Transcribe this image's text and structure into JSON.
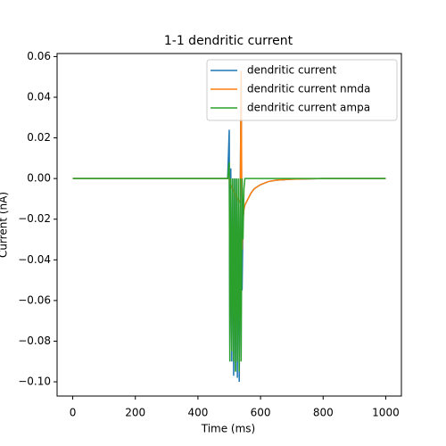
{
  "chart_data": {
    "type": "line",
    "title": "1-1 dendritic current",
    "xlabel": "Time (ms)",
    "ylabel": "Current (nA)",
    "x": [
      0,
      495,
      500,
      502,
      505,
      508,
      511,
      514,
      517,
      520,
      523,
      526,
      529,
      532,
      535,
      538,
      541,
      544,
      547,
      550,
      560,
      570,
      580,
      600,
      625,
      650,
      700,
      800,
      1000
    ],
    "series": [
      {
        "name": "dendritic current",
        "color": "#1f77b4",
        "values": [
          0,
          0,
          0.024,
          -0.09,
          0.005,
          -0.09,
          0,
          -0.097,
          0,
          -0.095,
          0,
          -0.098,
          -0.01,
          -0.1,
          -0.01,
          0.053,
          -0.055,
          -0.02,
          -0.015,
          -0.013,
          -0.01,
          -0.007,
          -0.005,
          -0.003,
          -0.0015,
          -0.0008,
          -0.0003,
          0,
          0
        ]
      },
      {
        "name": "dendritic current nmda",
        "color": "#ff7f0e",
        "values": [
          0,
          0,
          0,
          -0.002,
          -0.003,
          -0.004,
          -0.005,
          -0.006,
          -0.007,
          -0.008,
          -0.009,
          -0.01,
          -0.011,
          -0.011,
          -0.012,
          0.053,
          -0.035,
          -0.02,
          -0.015,
          -0.013,
          -0.01,
          -0.007,
          -0.005,
          -0.003,
          -0.0015,
          -0.0008,
          -0.0003,
          0,
          0
        ]
      },
      {
        "name": "dendritic current ampa",
        "color": "#2ca02c",
        "values": [
          0,
          0,
          0.008,
          -0.09,
          0,
          -0.085,
          0,
          -0.09,
          0,
          -0.095,
          0,
          -0.09,
          0,
          -0.095,
          0,
          -0.09,
          0,
          -0.03,
          -0.005,
          0,
          0,
          0,
          0,
          0,
          0,
          0,
          0,
          0,
          0
        ]
      }
    ],
    "xlim": [
      -50,
      1050
    ],
    "xticks": [
      0,
      200,
      400,
      600,
      800,
      1000
    ],
    "ylim": [
      -0.107,
      0.0615
    ],
    "yticks": [
      {
        "value": -0.1,
        "label": "−0.10"
      },
      {
        "value": -0.08,
        "label": "−0.08"
      },
      {
        "value": -0.06,
        "label": "−0.06"
      },
      {
        "value": -0.04,
        "label": "−0.04"
      },
      {
        "value": -0.02,
        "label": "−0.02"
      },
      {
        "value": 0,
        "label": "0.00"
      },
      {
        "value": 0.02,
        "label": "0.02"
      },
      {
        "value": 0.04,
        "label": "0.04"
      },
      {
        "value": 0.06,
        "label": "0.06"
      }
    ],
    "legend": "upper right",
    "grid": false
  }
}
